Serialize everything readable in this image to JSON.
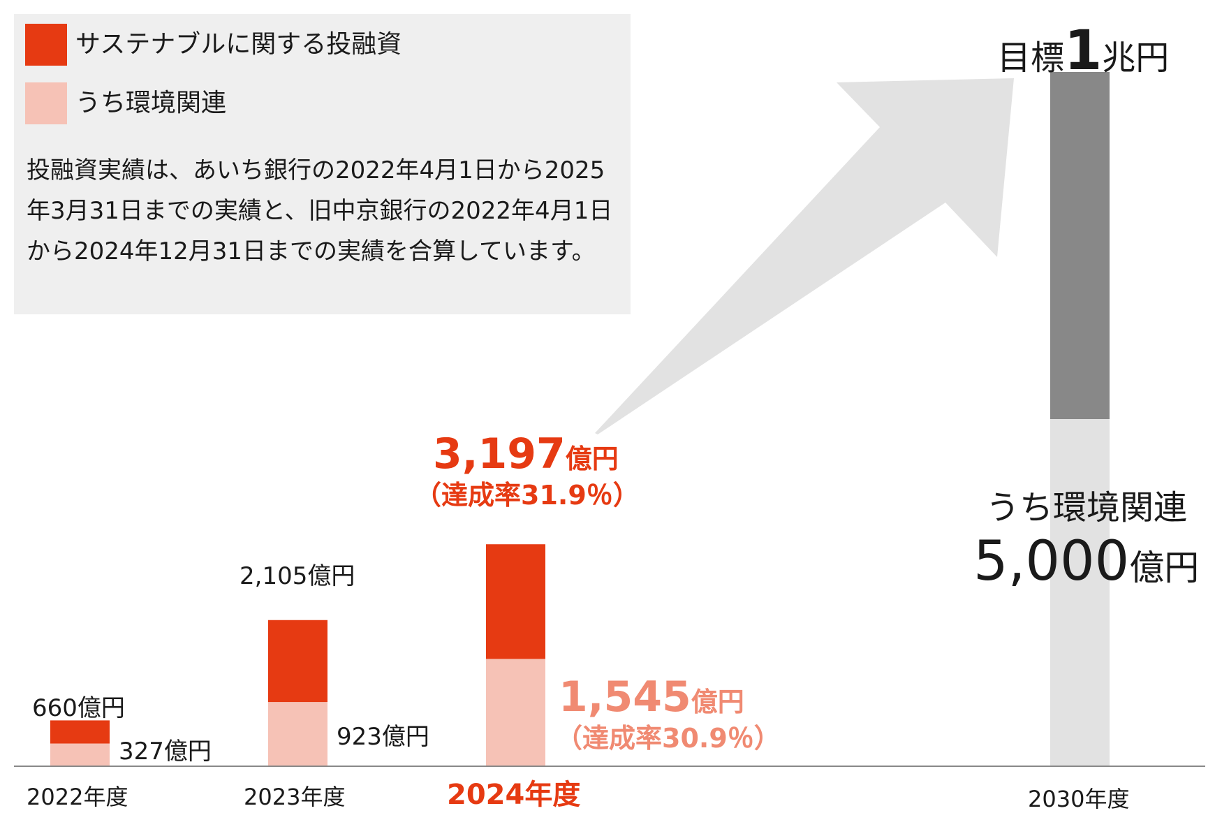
{
  "legend": {
    "items": [
      {
        "label": "サステナブルに関する投融資",
        "color": "#e63a12"
      },
      {
        "label": "うち環境関連",
        "color": "#f6c2b6"
      }
    ],
    "note": "投融資実績は、あいち銀行の2022年4月1日から2025年3月31日までの実績と、旧中京銀行の2022年4月1日から2024年12月31日までの実績を合算しています。"
  },
  "chart_data": {
    "type": "bar",
    "categories": [
      "2022年度",
      "2023年度",
      "2024年度",
      "2030年度"
    ],
    "series": [
      {
        "name": "サステナブルに関する投融資",
        "values": [
          660,
          2105,
          3197,
          10000
        ],
        "unit": "億円"
      },
      {
        "name": "うち環境関連",
        "values": [
          327,
          923,
          1545,
          5000
        ],
        "unit": "億円"
      }
    ],
    "ylim": [
      0,
      10000
    ],
    "grid": false,
    "legend_position": "top-left",
    "labels": {
      "total": [
        "660億円",
        "2,105億円",
        "",
        ""
      ],
      "env": [
        "327億円",
        "923億円",
        "",
        ""
      ]
    },
    "highlight": {
      "category": "2024年度",
      "total_value": "3,197",
      "total_unit": "億円",
      "total_rate": "（達成率31.9％）",
      "env_value": "1,545",
      "env_unit": "億円",
      "env_rate": "（達成率30.9％）"
    },
    "target": {
      "prefix": "目標",
      "number": "1",
      "suffix": "兆円",
      "env_label": "うち環境関連",
      "env_value": "5,000",
      "env_unit": "億円"
    }
  },
  "colors": {
    "total": "#e63a12",
    "env": "#f6c2b6",
    "highlight_total": "#e63a12",
    "highlight_env": "#f08a72",
    "target_upper": "#888888",
    "target_lower": "#e2e2e2",
    "arrow": "#e2e2e2",
    "axis": "#888888"
  }
}
